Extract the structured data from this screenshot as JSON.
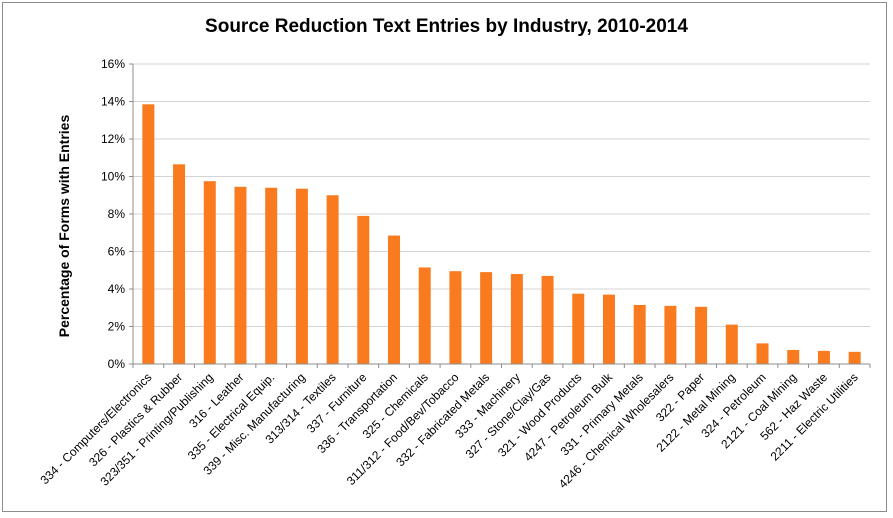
{
  "chart_data": {
    "type": "bar",
    "title": "Source Reduction Text Entries by Industry, 2010-2014",
    "xlabel": "",
    "ylabel": "Percentage of Forms with Entries",
    "ylim": [
      0,
      16
    ],
    "yticks": [
      "0%",
      "2%",
      "4%",
      "6%",
      "8%",
      "10%",
      "12%",
      "14%",
      "16%"
    ],
    "grid": true,
    "legend": "none",
    "bar_color": "#F97A1F",
    "categories": [
      "334 - Computers/Electronics",
      "326 - Plastics & Rubber",
      "323/351 - Printing/Publishing",
      "316 - Leather",
      "335 - Electrical Equip.",
      "339 - Misc. Manufacturing",
      "313/314 - Textiles",
      "337 - Furniture",
      "336 - Transportation",
      "325 - Chemicals",
      "311/312 - Food/Bev/Tobacco",
      "332 - Fabricated Metals",
      "333 - Machinery",
      "327 - Stone/Clay/Gas",
      "321 - Wood Products",
      "4247 - Petroleum Bulk",
      "331 - Primary Metals",
      "4246 - Chemical Wholesalers",
      "322 - Paper",
      "2122 - Metal Mining",
      "324 - Petroleum",
      "2121 - Coal Mining",
      "562 - Haz Waste",
      "2211 - Electric Utilities"
    ],
    "values": [
      13.85,
      10.65,
      9.75,
      9.45,
      9.4,
      9.35,
      9.0,
      7.9,
      6.85,
      5.15,
      4.95,
      4.9,
      4.8,
      4.7,
      3.75,
      3.7,
      3.15,
      3.1,
      3.05,
      2.1,
      1.1,
      0.75,
      0.7,
      0.65
    ]
  }
}
